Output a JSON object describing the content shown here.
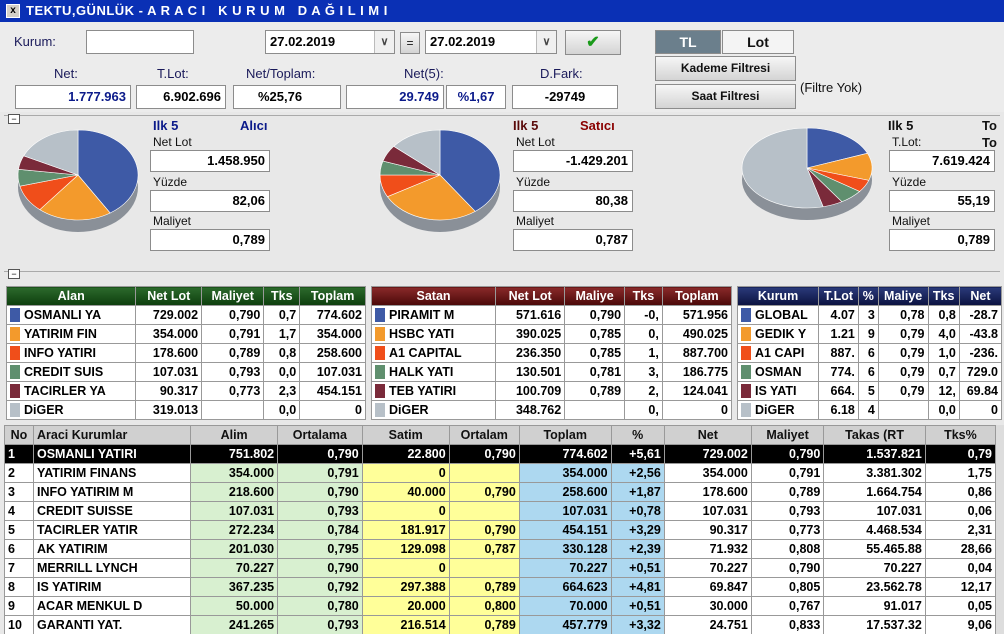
{
  "window": {
    "title": "TEKTU,GÜNLÜK - A R A C I   K U R U M   D A Ğ I L I M I",
    "icon": "x"
  },
  "filters": {
    "kurum_label": "Kurum:",
    "kurum_value": "",
    "date_from": "27.02.2019",
    "equals": "=",
    "date_to": "27.02.2019",
    "tl_label": "TL",
    "lot_label": "Lot",
    "kademe_label": "Kademe Filtresi",
    "saat_label": "Saat Filtresi",
    "filter_status": "(Filtre Yok)"
  },
  "summary": {
    "net_label": "Net:",
    "net_value": "1.777.963",
    "tlot_label": "T.Lot:",
    "tlot_value": "6.902.696",
    "net_toplam_label": "Net/Toplam:",
    "net_toplam_value": "%25,76",
    "net5_label": "Net(5):",
    "net5_value": "29.749",
    "net5_pct": "%1,67",
    "dfark_label": "D.Fark:",
    "dfark_value": "-29749"
  },
  "pies": {
    "buyer": {
      "title": "Ilk 5",
      "side": "Alıcı",
      "net_lot_label": "Net Lot",
      "net_lot": "1.458.950",
      "yuzde_label": "Yüzde",
      "yuzde": "82,06",
      "maliyet_label": "Maliyet",
      "maliyet": "0,789"
    },
    "seller": {
      "title": "Ilk 5",
      "side": "Satıcı",
      "net_lot_label": "Net Lot",
      "net_lot": "-1.429.201",
      "yuzde_label": "Yüzde",
      "yuzde": "80,38",
      "maliyet_label": "Maliyet",
      "maliyet": "0,787"
    },
    "total": {
      "title": "Ilk 5",
      "side": "To",
      "side2": "To",
      "tlot_label": "T.Lot:",
      "tlot": "7.619.424",
      "yuzde_label": "Yüzde",
      "yuzde": "55,19",
      "maliyet_label": "Maliyet",
      "maliyet": "0,789"
    }
  },
  "colors": {
    "blue": "#3e5aa6",
    "orange": "#f39a2c",
    "red": "#f04e1a",
    "green": "#5f8f6e",
    "maroon": "#7a2a3a",
    "gray": "#b7c0c8"
  },
  "buyers": {
    "headers": [
      "Alan",
      "Net Lot",
      "Maliyet",
      "Tks",
      "Toplam"
    ],
    "rows": [
      [
        "OSMANLI YA",
        "729.002",
        "0,790",
        "0,7",
        "774.602"
      ],
      [
        "YATIRIM FIN",
        "354.000",
        "0,791",
        "1,7",
        "354.000"
      ],
      [
        "INFO YATIRI",
        "178.600",
        "0,789",
        "0,8",
        "258.600"
      ],
      [
        "CREDIT SUIS",
        "107.031",
        "0,793",
        "0,0",
        "107.031"
      ],
      [
        "TACIRLER YA",
        "90.317",
        "0,773",
        "2,3",
        "454.151"
      ],
      [
        "DiGER",
        "319.013",
        "",
        "0,0",
        "0"
      ]
    ]
  },
  "sellers": {
    "headers": [
      "Satan",
      "Net Lot",
      "Maliye",
      "Tks",
      "Toplam"
    ],
    "rows": [
      [
        "PIRAMIT M",
        "571.616",
        "0,790",
        "-0,",
        "571.956"
      ],
      [
        "HSBC YATI",
        "390.025",
        "0,785",
        "0,",
        "490.025"
      ],
      [
        "A1 CAPITAL",
        "236.350",
        "0,785",
        "1,",
        "887.700"
      ],
      [
        "HALK YATI",
        "130.501",
        "0,781",
        "3,",
        "186.775"
      ],
      [
        "TEB YATIRI",
        "100.709",
        "0,789",
        "2,",
        "124.041"
      ],
      [
        "DiGER",
        "348.762",
        "",
        "0,",
        "0"
      ]
    ]
  },
  "totals": {
    "headers": [
      "Kurum",
      "T.Lot",
      "%",
      "Maliye",
      "Tks",
      "Net"
    ],
    "rows": [
      [
        "GLOBAL",
        "4.07",
        "3",
        "0,78",
        "0,8",
        "-28.7"
      ],
      [
        "GEDIK Y",
        "1.21",
        "9",
        "0,79",
        "4,0",
        "-43.8"
      ],
      [
        "A1 CAPI",
        "887.",
        "6",
        "0,79",
        "1,0",
        "-236."
      ],
      [
        "OSMAN",
        "774.",
        "6",
        "0,79",
        "0,7",
        "729.0"
      ],
      [
        "IS YATI",
        "664.",
        "5",
        "0,79",
        "12,",
        "69.84"
      ],
      [
        "DiGER",
        "6.18",
        "4",
        "",
        "0,0",
        "0"
      ]
    ]
  },
  "main": {
    "headers": [
      "No",
      "Araci Kurumlar",
      "Alim",
      "Ortalama",
      "Satim",
      "Ortalam",
      "Toplam",
      "%",
      "Net",
      "Maliyet",
      "Takas (RT",
      "Tks%"
    ],
    "rows": [
      [
        "1",
        "OSMANLI YATIRI",
        "751.802",
        "0,790",
        "22.800",
        "0,790",
        "774.602",
        "+5,61",
        "729.002",
        "0,790",
        "1.537.821",
        "0,79"
      ],
      [
        "2",
        "YATIRIM FINANS",
        "354.000",
        "0,791",
        "0",
        "",
        "354.000",
        "+2,56",
        "354.000",
        "0,791",
        "3.381.302",
        "1,75"
      ],
      [
        "3",
        "INFO YATIRIM M",
        "218.600",
        "0,790",
        "40.000",
        "0,790",
        "258.600",
        "+1,87",
        "178.600",
        "0,789",
        "1.664.754",
        "0,86"
      ],
      [
        "4",
        "CREDIT SUISSE",
        "107.031",
        "0,793",
        "0",
        "",
        "107.031",
        "+0,78",
        "107.031",
        "0,793",
        "107.031",
        "0,06"
      ],
      [
        "5",
        "TACIRLER YATIR",
        "272.234",
        "0,784",
        "181.917",
        "0,790",
        "454.151",
        "+3,29",
        "90.317",
        "0,773",
        "4.468.534",
        "2,31"
      ],
      [
        "6",
        "AK YATIRIM",
        "201.030",
        "0,795",
        "129.098",
        "0,787",
        "330.128",
        "+2,39",
        "71.932",
        "0,808",
        "55.465.88",
        "28,66"
      ],
      [
        "7",
        "MERRILL LYNCH",
        "70.227",
        "0,790",
        "0",
        "",
        "70.227",
        "+0,51",
        "70.227",
        "0,790",
        "70.227",
        "0,04"
      ],
      [
        "8",
        "IS YATIRIM",
        "367.235",
        "0,792",
        "297.388",
        "0,789",
        "664.623",
        "+4,81",
        "69.847",
        "0,805",
        "23.562.78",
        "12,17"
      ],
      [
        "9",
        "ACAR MENKUL D",
        "50.000",
        "0,780",
        "20.000",
        "0,800",
        "70.000",
        "+0,51",
        "30.000",
        "0,767",
        "91.017",
        "0,05"
      ],
      [
        "10",
        "GARANTI YAT.",
        "241.265",
        "0,793",
        "216.514",
        "0,789",
        "457.779",
        "+3,32",
        "24.751",
        "0,833",
        "17.537.32",
        "9,06"
      ]
    ]
  }
}
